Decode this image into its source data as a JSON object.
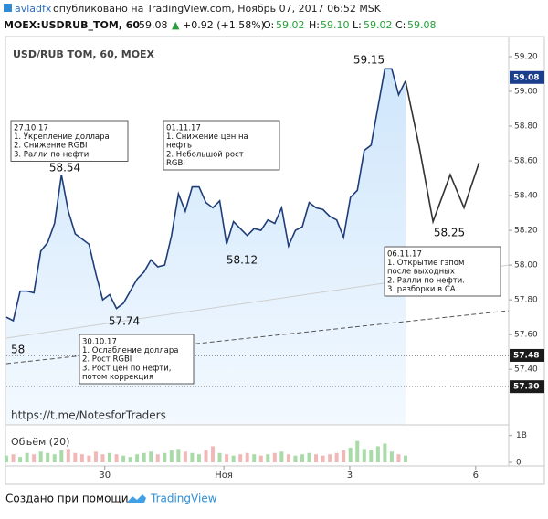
{
  "header": {
    "author": "avladfx",
    "published": "опубликовано на TradingView.com, Ноябрь 07, 2017 06:52 MSK",
    "symbol": "MOEX:USDRUB_TOM, 60",
    "last": "59.08",
    "arrow": "▲",
    "change": "+0.92 (+1.58%)",
    "o_label": "O:",
    "o": "59.02",
    "h_label": "H:",
    "h": "59.10",
    "l_label": "L:",
    "l": "59.02",
    "c_label": "C:",
    "c": "59.08"
  },
  "chart_data": {
    "type": "area",
    "title": "USD/RUB TOM, 60, MOEX",
    "color": "#1f3d78",
    "fill": "#d6eafb",
    "series": [
      {
        "color": "#1f3d78",
        "x": [
          0,
          1,
          2,
          3,
          4,
          5,
          6,
          7,
          8,
          9,
          10,
          11,
          12,
          13,
          14,
          15,
          16,
          17,
          18,
          19,
          20,
          21,
          22,
          23,
          24,
          25,
          26,
          27,
          28,
          29,
          30,
          31,
          32,
          33,
          34,
          35,
          36,
          37,
          38,
          39,
          40,
          41,
          42,
          43,
          44,
          45,
          46,
          47,
          48,
          49,
          50,
          51,
          52,
          53,
          54,
          55,
          56,
          57,
          58
        ],
        "values": [
          57.7,
          57.68,
          57.85,
          57.85,
          57.84,
          58.08,
          58.13,
          58.24,
          58.52,
          58.31,
          58.18,
          58.15,
          58.12,
          57.95,
          57.8,
          57.83,
          57.75,
          57.78,
          57.85,
          57.92,
          57.96,
          58.03,
          57.99,
          58.0,
          58.17,
          58.41,
          58.31,
          58.45,
          58.45,
          58.36,
          58.33,
          58.37,
          58.12,
          58.25,
          58.21,
          58.17,
          58.21,
          58.2,
          58.26,
          58.24,
          58.33,
          58.11,
          58.2,
          58.22,
          58.36,
          58.33,
          58.32,
          58.28,
          58.26,
          58.16,
          58.39,
          58.43,
          58.66,
          58.69,
          58.91,
          59.13,
          59.13,
          58.98,
          59.06
        ]
      },
      {
        "color": "#333333",
        "x": [
          58,
          60,
          62,
          64.5,
          66.5,
          68.7
        ],
        "values": [
          59.06,
          58.68,
          58.25,
          58.52,
          58.33,
          58.59
        ]
      }
    ],
    "xlim": [
      0,
      73
    ],
    "xticks": [
      {
        "value": 14.3,
        "label": "30"
      },
      {
        "value": 31.6,
        "label": "Ноя"
      },
      {
        "value": 49.9,
        "label": "3"
      },
      {
        "value": 68.2,
        "label": "6"
      }
    ],
    "ylim": [
      57.08,
      59.305
    ],
    "yticks": [
      {
        "value": 57.4,
        "label": "57.40"
      },
      {
        "value": 57.6,
        "label": "57.60"
      },
      {
        "value": 57.8,
        "label": "57.80"
      },
      {
        "value": 58,
        "label": "58.00"
      },
      {
        "value": 58.2,
        "label": "58.20"
      },
      {
        "value": 58.4,
        "label": "58.40"
      },
      {
        "value": 58.6,
        "label": "58.60"
      },
      {
        "value": 58.8,
        "label": "58.80"
      },
      {
        "value": 59,
        "label": "59.00"
      },
      {
        "value": 59.2,
        "label": "59.20"
      }
    ],
    "grid": false,
    "current_price": 59.08,
    "current_color": "#1a3e8c",
    "price_lines": [
      57.48,
      {
        "value": 57.3,
        "label": "57.30"
      }
    ],
    "price_labels": [
      59.15,
      58.54,
      57.74,
      58.12,
      58.25,
      "58"
    ],
    "notes": [
      {
        "lines": [
          "27.10.17",
          "1. Укрепление доллара",
          "2. Снижение RGBI",
          "3. Ралли по нефти"
        ]
      },
      {
        "lines": [
          "01.11.17",
          "1. Снижение цен на",
          "нефть",
          "2. Небольшой рост",
          "RGBI"
        ]
      },
      {
        "lines": [
          "30.10.17",
          "1. Ослабление доллара",
          "2. Рост RGBI",
          "3. Рост цен по нефти,",
          "потом коррекция"
        ]
      },
      {
        "lines": [
          "06.11.17",
          "1. Открытие гэпом",
          "после выходных",
          "2. Ралли по нефти.",
          "3. разборки в СА."
        ]
      }
    ],
    "watermark": "https://t.me/NotesforTraders",
    "volume": {
      "title": "Объём (20)",
      "up_color": "#a8dba8",
      "down_color": "#f2b8b8",
      "ylim": [
        0,
        1400000000.0
      ],
      "yticks": [
        0,
        {
          "value": 1000000000.0,
          "label": "1B"
        }
      ],
      "values": [
        250000000.0,
        300000000.0,
        200000000.0,
        350000000.0,
        300000000.0,
        400000000.0,
        350000000.0,
        300000000.0,
        450000000.0,
        500000000.0,
        350000000.0,
        300000000.0,
        250000000.0,
        400000000.0,
        300000000.0,
        350000000.0,
        300000000.0,
        250000000.0,
        200000000.0,
        300000000.0,
        350000000.0,
        400000000.0,
        300000000.0,
        350000000.0,
        450000000.0,
        500000000.0,
        400000000.0,
        350000000.0,
        300000000.0,
        450000000.0,
        600000000.0,
        350000000.0,
        300000000.0,
        250000000.0,
        300000000.0,
        350000000.0,
        300000000.0,
        250000000.0,
        300000000.0,
        350000000.0,
        400000000.0,
        300000000.0,
        250000000.0,
        300000000.0,
        350000000.0,
        300000000.0,
        250000000.0,
        300000000.0,
        350000000.0,
        450000000.0,
        550000000.0,
        800000000.0,
        500000000.0,
        450000000.0,
        600000000.0,
        700000000.0,
        400000000.0,
        300000000.0,
        250000000.0
      ]
    }
  },
  "footer": {
    "made_with": "Создано при помощи",
    "brand": "TradingView"
  }
}
